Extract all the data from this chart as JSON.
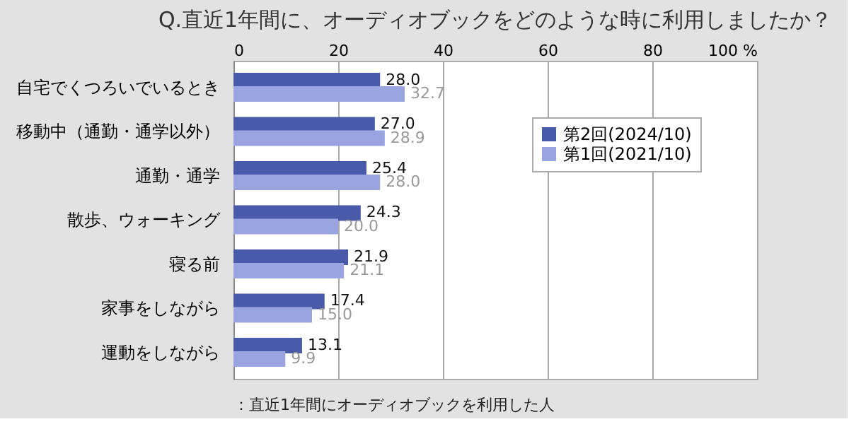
{
  "chart_data": {
    "type": "bar",
    "orientation": "horizontal",
    "title": "Q.直近1年間に、オーディオブックをどのような時に利用しましたか？",
    "categories": [
      "自宅でくつろいでいるとき",
      "移動中（通勤・通学以外）",
      "通勤・通学",
      "散歩、ウォーキング",
      "寝る前",
      "家事をしながら",
      "運動をしながら"
    ],
    "series": [
      {
        "name": "第2回(2024/10)",
        "color": "#4a5aaa",
        "values": [
          28.0,
          27.0,
          25.4,
          24.3,
          21.9,
          17.4,
          13.1
        ],
        "value_labels": [
          "28.0",
          "27.0",
          "25.4",
          "24.3",
          "21.9",
          "17.4",
          "13.1"
        ]
      },
      {
        "name": "第1回(2021/10)",
        "color": "#9aa4e0",
        "values": [
          32.7,
          28.9,
          28.0,
          20.0,
          21.1,
          15.0,
          9.9
        ],
        "value_labels": [
          "32.7",
          "28.9",
          "28.0",
          "20.0",
          "21.1",
          "15.0",
          "9.9"
        ]
      }
    ],
    "xlim": [
      0,
      100
    ],
    "xticks": [
      0,
      20,
      40,
      60,
      80,
      {
        "value": 100,
        "label": "100 %"
      }
    ],
    "grid": "x",
    "legend": "top right",
    "annotations": [
      "：直近1年間にオーディオブックを利用した人"
    ]
  }
}
